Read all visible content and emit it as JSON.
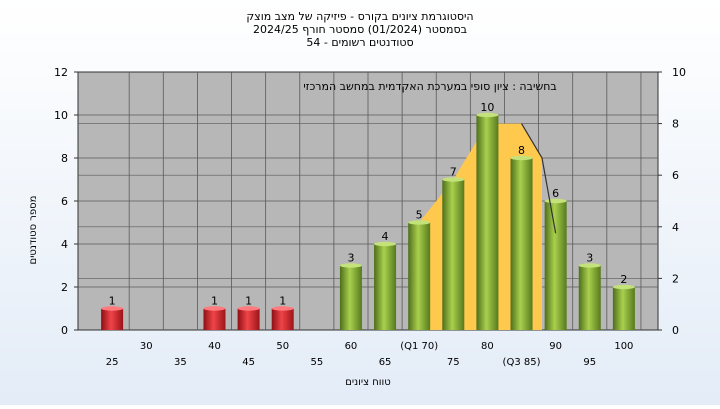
{
  "chart_data": {
    "type": "bar",
    "title_lines": [
      "היסטוגרמת ציונים בקורס - פיזיקה של מצב מוצק",
      "בסמסטר  (01/2024)  סמסטר חורף 2024/25",
      "סטודנטים רשומים - 54"
    ],
    "annotation": "בחשיבה : ציון סופי במערכת האקדמית במחשב המרכזי",
    "xlabel": "טווח ציונים",
    "ylabel": "מספר סטודנטים",
    "ylim": [
      0,
      12
    ],
    "y_ticks": [
      0,
      2,
      4,
      6,
      8,
      10,
      12
    ],
    "y2lim": [
      0,
      10
    ],
    "y2_ticks": [
      0,
      2,
      4,
      6,
      8,
      10
    ],
    "x_tick_labels": [
      {
        "x": 25,
        "text": "25",
        "row": 2
      },
      {
        "x": 30,
        "text": "30",
        "row": 1
      },
      {
        "x": 35,
        "text": "35",
        "row": 2
      },
      {
        "x": 40,
        "text": "40",
        "row": 1
      },
      {
        "x": 45,
        "text": "45",
        "row": 2
      },
      {
        "x": 50,
        "text": "50",
        "row": 1
      },
      {
        "x": 55,
        "text": "55",
        "row": 2
      },
      {
        "x": 60,
        "text": "60",
        "row": 1
      },
      {
        "x": 65,
        "text": "65",
        "row": 2
      },
      {
        "x": 70,
        "text": "(Q1 70)",
        "row": 1
      },
      {
        "x": 75,
        "text": "75",
        "row": 2
      },
      {
        "x": 80,
        "text": "80",
        "row": 1
      },
      {
        "x": 85,
        "text": "(Q3 85)",
        "row": 2
      },
      {
        "x": 90,
        "text": "90",
        "row": 1
      },
      {
        "x": 95,
        "text": "95",
        "row": 2
      },
      {
        "x": 100,
        "text": "100",
        "row": 1
      }
    ],
    "bars": [
      {
        "x": 25,
        "value": 1,
        "label": "1",
        "group": "fail"
      },
      {
        "x": 40,
        "value": 1,
        "label": "1",
        "group": "fail"
      },
      {
        "x": 45,
        "value": 1,
        "label": "1",
        "group": "fail"
      },
      {
        "x": 50,
        "value": 1,
        "label": "1",
        "group": "fail"
      },
      {
        "x": 60,
        "value": 3,
        "label": "3",
        "group": "pass"
      },
      {
        "x": 65,
        "value": 4,
        "label": "4",
        "group": "pass"
      },
      {
        "x": 70,
        "value": 5,
        "label": "5",
        "group": "pass"
      },
      {
        "x": 75,
        "value": 7,
        "label": "7",
        "group": "pass"
      },
      {
        "x": 80,
        "value": 10,
        "label": "10",
        "group": "pass"
      },
      {
        "x": 85,
        "value": 8,
        "label": "8",
        "group": "pass"
      },
      {
        "x": 90,
        "value": 6,
        "label": "6",
        "group": "pass"
      },
      {
        "x": 95,
        "value": 3,
        "label": "3",
        "group": "pass"
      },
      {
        "x": 100,
        "value": 2,
        "label": "2",
        "group": "pass"
      }
    ],
    "area_band": {
      "x": [
        70,
        75,
        80,
        85,
        88
      ],
      "y": [
        5,
        7,
        9.6,
        9.6,
        8
      ]
    },
    "trend_line": {
      "x": [
        85,
        88,
        90
      ],
      "y": [
        9.6,
        8,
        4.5
      ]
    },
    "colors": {
      "plot_bg": "#b7b7b7",
      "pass_bar": "#8fbd3a",
      "fail_bar": "#d9252b",
      "area": "#ffc94d",
      "grid": "#5a5a5a"
    },
    "grid": true
  }
}
